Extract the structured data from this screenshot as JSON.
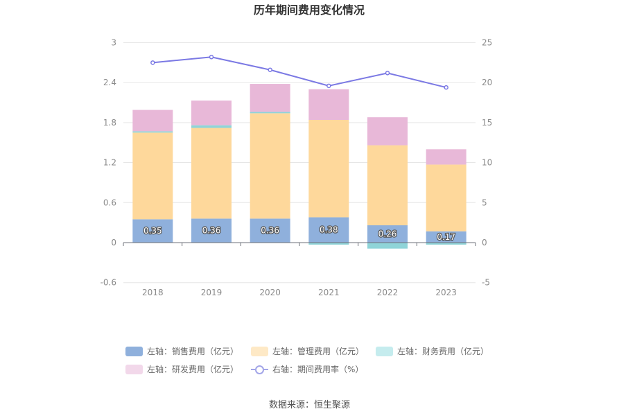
{
  "chart_data": {
    "type": "bar",
    "title": "历年期间费用变化情况",
    "categories": [
      "2018",
      "2019",
      "2020",
      "2021",
      "2022",
      "2023"
    ],
    "left_axis": {
      "ticks": [
        "3",
        "2.4",
        "1.8",
        "1.2",
        "0.6",
        "0",
        "-0.6"
      ],
      "range": [
        -0.6,
        3
      ]
    },
    "right_axis": {
      "ticks": [
        "25",
        "20",
        "15",
        "10",
        "5",
        "0",
        "-5"
      ],
      "range": [
        -5,
        25
      ]
    },
    "series": [
      {
        "name": "左轴：销售费用（亿元）",
        "kind": "stacked-bar",
        "axis": "left",
        "color": "#8fb0dc",
        "values": [
          0.35,
          0.36,
          0.36,
          0.38,
          0.26,
          0.17
        ],
        "labels": [
          "0.35",
          "0.36",
          "0.36",
          "0.38",
          "0.26",
          "0.17"
        ]
      },
      {
        "name": "左轴：管理费用（亿元）",
        "kind": "stacked-bar",
        "axis": "left",
        "color": "#fed89b",
        "values": [
          1.3,
          1.36,
          1.58,
          1.46,
          1.2,
          1.0
        ]
      },
      {
        "name": "左轴：财务费用（亿元）",
        "kind": "stacked-bar",
        "axis": "left",
        "color": "#8fd4d8",
        "values": [
          0.02,
          0.04,
          0.02,
          -0.03,
          -0.09,
          -0.03
        ]
      },
      {
        "name": "左轴：研发费用（亿元）",
        "kind": "stacked-bar",
        "axis": "left",
        "color": "#e8b8d8",
        "values": [
          0.32,
          0.37,
          0.42,
          0.46,
          0.42,
          0.23
        ]
      },
      {
        "name": "右轴：期间费用率（%）",
        "kind": "line",
        "axis": "right",
        "color": "#7b79e4",
        "values": [
          22.5,
          23.2,
          21.6,
          19.6,
          21.2,
          19.4
        ]
      }
    ],
    "legend_position": "bottom",
    "grid": true
  },
  "source": "数据来源：恒生聚源"
}
